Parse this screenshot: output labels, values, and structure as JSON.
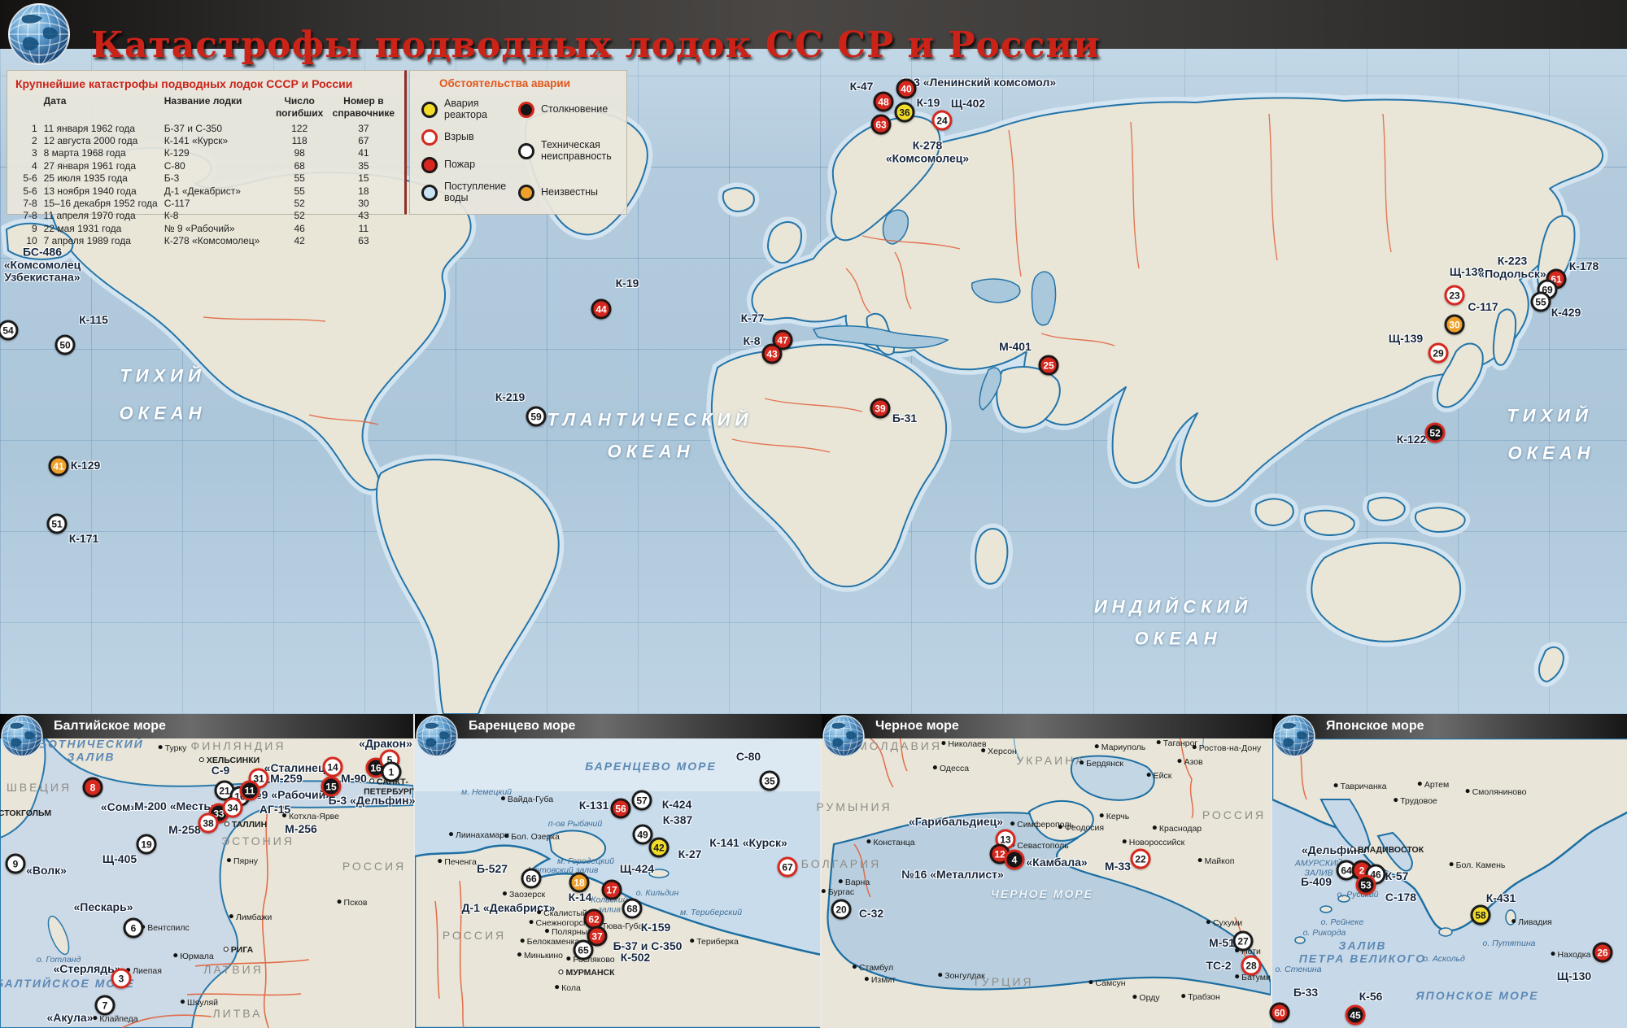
{
  "title": "Катастрофы подводных лодок СС СР и России",
  "table": {
    "heading": "Крупнейшие катастрофы подводных лодок СССР и России",
    "col_headers": [
      "",
      "Дата",
      "Название лодки",
      "Число погибших",
      "Номер в справочнике"
    ],
    "rows": [
      [
        "1",
        "11 января 1962 года",
        "Б-37 и С-350",
        "122",
        "37"
      ],
      [
        "2",
        "12 августа 2000 года",
        "К-141 «Курск»",
        "118",
        "67"
      ],
      [
        "3",
        "8 марта 1968 года",
        "К-129",
        "98",
        "41"
      ],
      [
        "4",
        "27 января 1961 года",
        "С-80",
        "68",
        "35"
      ],
      [
        "5-6",
        "25 июля 1935 года",
        "Б-3",
        "55",
        "15"
      ],
      [
        "5-6",
        "13 ноября 1940 года",
        "Д-1 «Декабрист»",
        "55",
        "18"
      ],
      [
        "7-8",
        "15–16 декабря 1952 года",
        "С-117",
        "52",
        "30"
      ],
      [
        "7-8",
        "11 апреля 1970 года",
        "К-8",
        "52",
        "43"
      ],
      [
        "9",
        "22 мая 1931 года",
        "№ 9 «Рабочий»",
        "46",
        "11"
      ],
      [
        "10",
        "7 апреля 1989 года",
        "К-278 «Комсомолец»",
        "42",
        "63"
      ]
    ]
  },
  "legend": {
    "heading": "Обстоятельства аварии",
    "items": [
      {
        "label": "Авария реактора",
        "type": "reactor",
        "color": "#f2dc2a",
        "col": "1",
        "row": "1"
      },
      {
        "label": "Взрыв",
        "type": "explosion",
        "color": "#ffffff",
        "col": "1",
        "row": "2"
      },
      {
        "label": "Пожар",
        "type": "fire",
        "color": "#d6281e",
        "col": "1",
        "row": "3"
      },
      {
        "label": "Поступление воды",
        "type": "flood",
        "color": "#c9e3f6",
        "col": "1",
        "row": "4"
      },
      {
        "label": "Столкновение",
        "type": "collision",
        "color": "#161616",
        "col": "2",
        "row": "1"
      },
      {
        "label": "Техническая неисправность",
        "type": "technical",
        "color": "#ffffff",
        "col": "2",
        "row": "2 / span 2"
      },
      {
        "label": "Неизвестны",
        "type": "unknown",
        "color": "#efa02a",
        "col": "2",
        "row": "4"
      }
    ]
  },
  "insets": [
    {
      "title": "Балтийское море"
    },
    {
      "title": "Баренцево море"
    },
    {
      "title": "Черное море"
    },
    {
      "title": "Японское море"
    }
  ],
  "colors": {
    "title_red": "#cb2318",
    "ocean": "#b3cbdd",
    "land": "#e9e6d8",
    "coast": "#2474a8",
    "border_orange": "#e2613b"
  },
  "markers": [
    [
      "48",
      "fire",
      1086,
      125
    ],
    [
      "40",
      "fire",
      1114,
      109
    ],
    [
      "36",
      "reactor",
      1112,
      138
    ],
    [
      "24",
      "explosion",
      1158,
      148
    ],
    [
      "63",
      "fire",
      1083,
      153
    ],
    [
      "54",
      "technical",
      10,
      406
    ],
    [
      "50",
      "technical",
      80,
      424
    ],
    [
      "41",
      "unknown",
      72,
      573
    ],
    [
      "51",
      "technical",
      70,
      644
    ],
    [
      "44",
      "fire",
      739,
      380
    ],
    [
      "59",
      "technical",
      659,
      512
    ],
    [
      "47",
      "fire",
      962,
      418
    ],
    [
      "43",
      "fire",
      949,
      435
    ],
    [
      "25",
      "fire",
      1289,
      449
    ],
    [
      "39",
      "fire",
      1082,
      502
    ],
    [
      "23",
      "explosion",
      1788,
      363
    ],
    [
      "30",
      "unknown",
      1788,
      399
    ],
    [
      "61",
      "fire",
      1913,
      343
    ],
    [
      "69",
      "technical",
      1902,
      356
    ],
    [
      "55",
      "technical",
      1894,
      371
    ],
    [
      "29",
      "explosion",
      1768,
      434
    ],
    [
      "52",
      "collision",
      1764,
      532
    ],
    [
      "8",
      "fire",
      114,
      968
    ],
    [
      "14",
      "explosion",
      409,
      943
    ],
    [
      "31",
      "explosion",
      318,
      957
    ],
    [
      "16",
      "collision",
      462,
      944
    ],
    [
      "5",
      "explosion",
      479,
      934
    ],
    [
      "1",
      "technical",
      481,
      949
    ],
    [
      "15",
      "collision",
      407,
      967
    ],
    [
      "21",
      "technical",
      276,
      972
    ],
    [
      "10",
      "technical",
      295,
      979
    ],
    [
      "11",
      "collision",
      307,
      972
    ],
    [
      "33",
      "collision",
      269,
      1000
    ],
    [
      "34",
      "explosion",
      286,
      993
    ],
    [
      "38",
      "explosion",
      256,
      1012
    ],
    [
      "19",
      "technical",
      180,
      1038
    ],
    [
      "9",
      "technical",
      19,
      1062
    ],
    [
      "6",
      "technical",
      164,
      1141
    ],
    [
      "3",
      "explosion",
      149,
      1203
    ],
    [
      "7",
      "technical",
      129,
      1236
    ],
    [
      "35",
      "technical",
      946,
      960
    ],
    [
      "56",
      "fire",
      763,
      994
    ],
    [
      "57",
      "technical",
      789,
      984
    ],
    [
      "49",
      "technical",
      790,
      1026
    ],
    [
      "42",
      "reactor",
      810,
      1042
    ],
    [
      "67",
      "explosion",
      968,
      1066
    ],
    [
      "66",
      "technical",
      653,
      1080
    ],
    [
      "18",
      "unknown",
      712,
      1085
    ],
    [
      "17",
      "fire",
      752,
      1094
    ],
    [
      "68",
      "technical",
      777,
      1117
    ],
    [
      "62",
      "fire",
      730,
      1130
    ],
    [
      "37",
      "fire",
      734,
      1151
    ],
    [
      "65",
      "technical",
      717,
      1168
    ],
    [
      "13",
      "explosion",
      1236,
      1032
    ],
    [
      "12",
      "fire",
      1229,
      1050
    ],
    [
      "4",
      "collision",
      1247,
      1057
    ],
    [
      "22",
      "explosion",
      1402,
      1056
    ],
    [
      "20",
      "technical",
      1034,
      1118
    ],
    [
      "27",
      "technical",
      1528,
      1157
    ],
    [
      "28",
      "explosion",
      1538,
      1187
    ],
    [
      "64",
      "technical",
      1655,
      1070
    ],
    [
      "2",
      "fire",
      1674,
      1070
    ],
    [
      "46",
      "technical",
      1691,
      1075
    ],
    [
      "53",
      "collision",
      1679,
      1088
    ],
    [
      "58",
      "reactor",
      1820,
      1125
    ],
    [
      "26",
      "fire",
      1970,
      1171
    ],
    [
      "60",
      "fire",
      1573,
      1245
    ],
    [
      "45",
      "collision",
      1666,
      1248
    ]
  ],
  "labels": [
    [
      "К-47",
      "sub",
      1059,
      107
    ],
    [
      "К-3 «Ленинский комсомол»",
      "sub",
      1204,
      102
    ],
    [
      "К-19",
      "sub",
      1141,
      127
    ],
    [
      "Щ-402",
      "sub",
      1190,
      128
    ],
    [
      "К-278\n«Комсомолец»",
      "sub",
      1140,
      187
    ],
    [
      "БС-486\n«Комсомолец\nУзбекистана»",
      "sub",
      52,
      326
    ],
    [
      "К-115",
      "sub",
      115,
      394
    ],
    [
      "К-129",
      "sub",
      105,
      573
    ],
    [
      "К-171",
      "sub",
      103,
      663
    ],
    [
      "К-19",
      "sub",
      771,
      349
    ],
    [
      "К-219",
      "sub",
      627,
      489
    ],
    [
      "К-77",
      "sub",
      925,
      392
    ],
    [
      "К-8",
      "sub",
      924,
      420
    ],
    [
      "М-401",
      "sub",
      1248,
      427
    ],
    [
      "Б-31",
      "sub",
      1112,
      515
    ],
    [
      "Щ-138",
      "sub",
      1803,
      335
    ],
    [
      "К-223\n«Подольск»",
      "sub",
      1859,
      329
    ],
    [
      "К-178",
      "sub",
      1947,
      328
    ],
    [
      "С-117",
      "sub",
      1823,
      378
    ],
    [
      "К-429",
      "sub",
      1925,
      385
    ],
    [
      "Щ-139",
      "sub",
      1728,
      417
    ],
    [
      "К-122",
      "sub",
      1735,
      541
    ],
    [
      "ТИХИЙ",
      "sea",
      200,
      463
    ],
    [
      "ОКЕАН",
      "sea",
      200,
      509
    ],
    [
      "АТЛАНТИЧЕСКИЙ",
      "sea",
      789,
      517
    ],
    [
      "ОКЕАН",
      "sea",
      800,
      556
    ],
    [
      "ИНДИЙСКИЙ",
      "sea",
      1442,
      747
    ],
    [
      "ОКЕАН",
      "sea",
      1448,
      786
    ],
    [
      "ТИХИЙ",
      "sea",
      1905,
      512
    ],
    [
      "ОКЕАН",
      "sea",
      1907,
      558
    ],
    [
      "БОТНИЧЕСКИЙ\nЗАЛИВ",
      "seain",
      112,
      923
    ],
    [
      "ФИНЛЯНДИЯ",
      "country",
      293,
      918
    ],
    [
      "Турку",
      "city",
      212,
      921
    ],
    [
      "«Дракон»",
      "sub",
      474,
      915
    ],
    [
      "ХЕЛЬСИНКИ",
      "cap",
      282,
      936
    ],
    [
      "С-9",
      "sub",
      271,
      948
    ],
    [
      "«Сталинец»",
      "sub",
      366,
      945
    ],
    [
      "М-259",
      "sub",
      352,
      958
    ],
    [
      "М-90",
      "sub",
      435,
      958
    ],
    [
      "САНКТ-\nПЕТЕРБУРГ",
      "cap",
      478,
      968
    ],
    [
      "№9 «Рабочий»",
      "sub",
      357,
      978
    ],
    [
      "АГ-15",
      "sub",
      338,
      996
    ],
    [
      "Б-3 «Дельфин»",
      "sub",
      457,
      985
    ],
    [
      "ШВЕЦИЯ",
      "country",
      48,
      969
    ],
    [
      "«Сом»",
      "sub",
      146,
      993
    ],
    [
      "М-200 «Месть»",
      "sub",
      216,
      992
    ],
    [
      "Котхла-Ярве",
      "city",
      382,
      1005
    ],
    [
      "ТАЛЛИН",
      "cap",
      302,
      1015
    ],
    [
      "М-258",
      "sub",
      227,
      1021
    ],
    [
      "М-256",
      "sub",
      370,
      1020
    ],
    [
      "ЭСТОНИЯ",
      "country",
      317,
      1035
    ],
    [
      "Щ-405",
      "sub",
      147,
      1057
    ],
    [
      "СТОКГОЛЬМ",
      "cap",
      26,
      1001
    ],
    [
      "«Волк»",
      "sub",
      57,
      1071
    ],
    [
      "Пярну",
      "city",
      298,
      1060
    ],
    [
      "РОССИЯ",
      "country",
      460,
      1066
    ],
    [
      "Псков",
      "city",
      433,
      1111
    ],
    [
      "«Пескарь»",
      "sub",
      127,
      1116
    ],
    [
      "Лимбажи",
      "city",
      308,
      1129
    ],
    [
      "Вентспилс",
      "city",
      203,
      1142
    ],
    [
      "о. Готланд",
      "geo",
      72,
      1181
    ],
    [
      "Юрмала",
      "city",
      238,
      1177
    ],
    [
      "РИГА",
      "cap",
      293,
      1169
    ],
    [
      "«Стерлядь»",
      "sub",
      107,
      1192
    ],
    [
      "Лиепая",
      "city",
      177,
      1195
    ],
    [
      "БАЛТИЙСКОЕ МОРЕ",
      "seain",
      80,
      1210
    ],
    [
      "ЛАТВИЯ",
      "country",
      287,
      1193
    ],
    [
      "Шяуляй",
      "city",
      245,
      1234
    ],
    [
      "«Акула»",
      "sub",
      86,
      1252
    ],
    [
      "Клайпеда",
      "city",
      142,
      1254
    ],
    [
      "ЛИТВА",
      "country",
      292,
      1247
    ],
    [
      "БАРЕНЦЕВО МОРЕ",
      "seain",
      800,
      943
    ],
    [
      "С-80",
      "sub",
      920,
      931
    ],
    [
      "К-131",
      "sub",
      730,
      991
    ],
    [
      "К-424",
      "sub",
      832,
      990
    ],
    [
      "К-387",
      "sub",
      833,
      1009
    ],
    [
      "К-27",
      "sub",
      848,
      1051
    ],
    [
      "К-141 «Курск»",
      "sub",
      920,
      1037
    ],
    [
      "м. Немецкий",
      "geo",
      598,
      975
    ],
    [
      "Вайда-Губа",
      "city",
      648,
      984
    ],
    [
      "Лиинахамари",
      "city",
      589,
      1028
    ],
    [
      "Бол. Озерка",
      "city",
      654,
      1030
    ],
    [
      "Печенга",
      "city",
      562,
      1061
    ],
    [
      "Б-527",
      "sub",
      605,
      1069
    ],
    [
      "п-ов Рыбачий",
      "geo",
      707,
      1014
    ],
    [
      "м. Городецкий",
      "geo",
      720,
      1060
    ],
    [
      "Мотовский залив",
      "geo",
      692,
      1071
    ],
    [
      "Щ-424",
      "sub",
      783,
      1069
    ],
    [
      "Заозерск",
      "city",
      644,
      1101
    ],
    [
      "К-14",
      "sub",
      713,
      1104
    ],
    [
      "Кольский\nзалив",
      "geo",
      749,
      1113
    ],
    [
      "о. Кильдин",
      "geo",
      808,
      1099
    ],
    [
      "Д-1 «Декабрист»",
      "sub",
      625,
      1117
    ],
    [
      "Скалистый",
      "city",
      691,
      1124
    ],
    [
      "Снежногорск",
      "city",
      686,
      1136
    ],
    [
      "Тюва-Губа",
      "city",
      761,
      1140
    ],
    [
      "К-159",
      "sub",
      806,
      1141
    ],
    [
      "м. Териберский",
      "geo",
      874,
      1123
    ],
    [
      "Полярный",
      "city",
      699,
      1147
    ],
    [
      "РОССИЯ",
      "country",
      583,
      1151
    ],
    [
      "Белокаменка",
      "city",
      676,
      1159
    ],
    [
      "Б-37 и С-350",
      "sub",
      796,
      1164
    ],
    [
      "К-502",
      "sub",
      781,
      1178
    ],
    [
      "Минькино",
      "city",
      664,
      1176
    ],
    [
      "Росляково",
      "city",
      726,
      1181
    ],
    [
      "МУРМАНСК",
      "cap",
      721,
      1197
    ],
    [
      "Кола",
      "city",
      698,
      1216
    ],
    [
      "Териберка",
      "city",
      878,
      1159
    ],
    [
      "МОЛДАВИЯ",
      "country",
      1106,
      918
    ],
    [
      "Николаев",
      "city",
      1185,
      916
    ],
    [
      "Херсон",
      "city",
      1228,
      925
    ],
    [
      "Мариуполь",
      "city",
      1377,
      920
    ],
    [
      "Таганрог",
      "city",
      1447,
      915
    ],
    [
      "Ростов-на-Дону",
      "city",
      1508,
      921
    ],
    [
      "УКРАИНА",
      "country",
      1292,
      936
    ],
    [
      "Одесса",
      "city",
      1169,
      946
    ],
    [
      "Бердянск",
      "city",
      1354,
      940
    ],
    [
      "Азов",
      "city",
      1463,
      938
    ],
    [
      "Ейск",
      "city",
      1425,
      955
    ],
    [
      "РУМЫНИЯ",
      "country",
      1050,
      993
    ],
    [
      "Керчь",
      "city",
      1370,
      1005
    ],
    [
      "РОССИЯ",
      "country",
      1517,
      1003
    ],
    [
      "«Гарибальдиец»",
      "sub",
      1175,
      1011
    ],
    [
      "Симферополь",
      "city",
      1281,
      1015
    ],
    [
      "Феодосия",
      "city",
      1329,
      1019
    ],
    [
      "Краснодар",
      "city",
      1447,
      1020
    ],
    [
      "Севастополь",
      "city",
      1278,
      1041
    ],
    [
      "«Камбала»",
      "sub",
      1299,
      1061
    ],
    [
      "Новороссийск",
      "city",
      1418,
      1037
    ],
    [
      "М-33",
      "sub",
      1374,
      1066
    ],
    [
      "Майкоп",
      "city",
      1495,
      1060
    ],
    [
      "Констанца",
      "city",
      1095,
      1037
    ],
    [
      "№16 «Металлист»",
      "sub",
      1171,
      1076
    ],
    [
      "БОЛГАРИЯ",
      "country",
      1034,
      1063
    ],
    [
      "Варна",
      "city",
      1050,
      1086
    ],
    [
      "ЧЕРНОЕ МОРЕ",
      "seaw",
      1281,
      1100
    ],
    [
      "Бургас",
      "city",
      1030,
      1098
    ],
    [
      "С-32",
      "sub",
      1071,
      1124
    ],
    [
      "Сухуми",
      "city",
      1505,
      1136
    ],
    [
      "М-51",
      "sub",
      1502,
      1160
    ],
    [
      "Поти",
      "city",
      1534,
      1171
    ],
    [
      "ТС-2",
      "sub",
      1498,
      1188
    ],
    [
      "Батуми",
      "city",
      1540,
      1203
    ],
    [
      "Стамбул",
      "city",
      1073,
      1191
    ],
    [
      "Зонгулдак",
      "city",
      1182,
      1201
    ],
    [
      "Измит",
      "city",
      1082,
      1206
    ],
    [
      "ТУРЦИЯ",
      "country",
      1233,
      1208
    ],
    [
      "Самсун",
      "city",
      1361,
      1210
    ],
    [
      "Орду",
      "city",
      1409,
      1228
    ],
    [
      "Трабзон",
      "city",
      1476,
      1227
    ],
    [
      "Тавричанка",
      "city",
      1672,
      968
    ],
    [
      "Артем",
      "city",
      1762,
      966
    ],
    [
      "Смоляниново",
      "city",
      1839,
      975
    ],
    [
      "Трудовое",
      "city",
      1740,
      986
    ],
    [
      "«Дельфин»",
      "sub",
      1640,
      1046
    ],
    [
      "ВЛАДИВОСТОК",
      "cap",
      1705,
      1046
    ],
    [
      "АМУРСКИЙ\nЗАЛИВ",
      "geo",
      1621,
      1068
    ],
    [
      "К-57",
      "sub",
      1717,
      1078
    ],
    [
      "Б-409",
      "sub",
      1618,
      1085
    ],
    [
      "о. Русский",
      "geo",
      1669,
      1101
    ],
    [
      "С-178",
      "sub",
      1722,
      1104
    ],
    [
      "Бол. Камень",
      "city",
      1816,
      1065
    ],
    [
      "К-431",
      "sub",
      1845,
      1105
    ],
    [
      "Ливадия",
      "city",
      1883,
      1135
    ],
    [
      "о. Рейнеке",
      "geo",
      1650,
      1135
    ],
    [
      "о. Рикорда",
      "geo",
      1628,
      1148
    ],
    [
      "о. Путятина",
      "geo",
      1855,
      1161
    ],
    [
      "ЗАЛИВ\nПЕТРА ВЕЛИКОГО",
      "seain",
      1675,
      1171
    ],
    [
      "о. Аскольд",
      "geo",
      1775,
      1180
    ],
    [
      "Находка",
      "city",
      1931,
      1175
    ],
    [
      "Щ-130",
      "sub",
      1935,
      1201
    ],
    [
      "о. Стенина",
      "geo",
      1596,
      1193
    ],
    [
      "Б-33",
      "sub",
      1605,
      1221
    ],
    [
      "К-56",
      "sub",
      1685,
      1226
    ],
    [
      "ЯПОНСКОЕ МОРЕ",
      "seain",
      1816,
      1225
    ]
  ]
}
